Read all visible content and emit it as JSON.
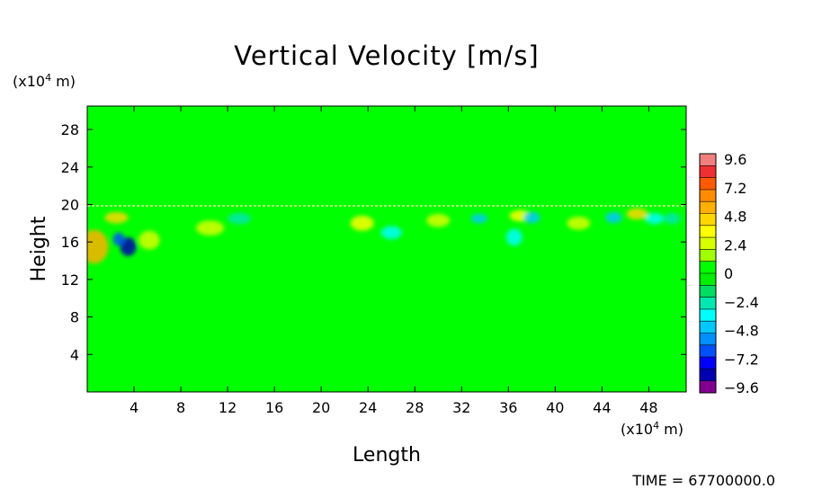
{
  "chart_data": {
    "type": "heatmap",
    "title": "Vertical Velocity [m/s]",
    "xlabel": "Length",
    "ylabel": "Height",
    "x_unit": "(x10⁴ m)",
    "y_unit": "(x10⁴ m)",
    "x_unit_parts": {
      "prefix": "(x10",
      "exponent": "4",
      "suffix": " m)"
    },
    "y_unit_parts": {
      "prefix": "(x10",
      "exponent": "4",
      "suffix": " m)"
    },
    "xlim": [
      0,
      51.2
    ],
    "ylim": [
      0,
      30.5
    ],
    "x_ticks": [
      "4",
      "8",
      "12",
      "16",
      "20",
      "24",
      "28",
      "32",
      "36",
      "40",
      "44",
      "48"
    ],
    "y_ticks": [
      "4",
      "8",
      "12",
      "16",
      "20",
      "24",
      "28"
    ],
    "colorbar": {
      "range": [
        -9.6,
        9.6
      ],
      "tick_labels": [
        "9.6",
        "7.2",
        "4.8",
        "2.4",
        "0",
        "−2.4",
        "−4.8",
        "−7.2",
        "−9.6"
      ],
      "colors": [
        "#f08080",
        "#f03030",
        "#ff5a00",
        "#ff8c00",
        "#ffb000",
        "#ffd700",
        "#ffff00",
        "#d8ff00",
        "#a0ff00",
        "#00ff00",
        "#00ee00",
        "#00dd60",
        "#00e8b0",
        "#00ffff",
        "#00c8ff",
        "#0090ff",
        "#0050ff",
        "#0000ff",
        "#0000b0",
        "#800090"
      ]
    },
    "background_value": 0,
    "features": [
      {
        "x": 3.5,
        "y": 15.5,
        "value": -8.5,
        "rx": 0.7,
        "ry": 1.0
      },
      {
        "x": 2.7,
        "y": 16.3,
        "value": -6.0,
        "rx": 0.5,
        "ry": 0.7
      },
      {
        "x": 0.6,
        "y": 15.5,
        "value": 5.0,
        "rx": 1.2,
        "ry": 1.8
      },
      {
        "x": 2.5,
        "y": 18.6,
        "value": 4.8,
        "rx": 1.0,
        "ry": 0.6
      },
      {
        "x": 5.3,
        "y": 16.2,
        "value": 2.5,
        "rx": 0.9,
        "ry": 1.0
      },
      {
        "x": 10.5,
        "y": 17.5,
        "value": 2.5,
        "rx": 1.2,
        "ry": 0.8
      },
      {
        "x": 13.0,
        "y": 18.5,
        "value": -2.5,
        "rx": 1.0,
        "ry": 0.6
      },
      {
        "x": 23.5,
        "y": 18.0,
        "value": 3.0,
        "rx": 1.0,
        "ry": 0.8
      },
      {
        "x": 26.0,
        "y": 17.0,
        "value": -3.0,
        "rx": 0.9,
        "ry": 0.7
      },
      {
        "x": 30.0,
        "y": 18.3,
        "value": 2.8,
        "rx": 1.0,
        "ry": 0.7
      },
      {
        "x": 33.5,
        "y": 18.5,
        "value": -4.5,
        "rx": 0.7,
        "ry": 0.5
      },
      {
        "x": 36.5,
        "y": 16.5,
        "value": -3.5,
        "rx": 0.7,
        "ry": 0.9
      },
      {
        "x": 37.0,
        "y": 18.8,
        "value": 3.5,
        "rx": 0.9,
        "ry": 0.6
      },
      {
        "x": 38.0,
        "y": 18.6,
        "value": -4.0,
        "rx": 0.7,
        "ry": 0.6
      },
      {
        "x": 42.0,
        "y": 18.0,
        "value": 2.5,
        "rx": 1.0,
        "ry": 0.7
      },
      {
        "x": 45.0,
        "y": 18.6,
        "value": -4.0,
        "rx": 0.7,
        "ry": 0.6
      },
      {
        "x": 47.0,
        "y": 19.0,
        "value": 4.0,
        "rx": 0.9,
        "ry": 0.6
      },
      {
        "x": 48.5,
        "y": 18.5,
        "value": -3.0,
        "rx": 0.8,
        "ry": 0.6
      },
      {
        "x": 50.0,
        "y": 18.5,
        "value": -2.5,
        "rx": 0.7,
        "ry": 0.6
      }
    ],
    "annotation": "TIME = 67700000.0"
  }
}
